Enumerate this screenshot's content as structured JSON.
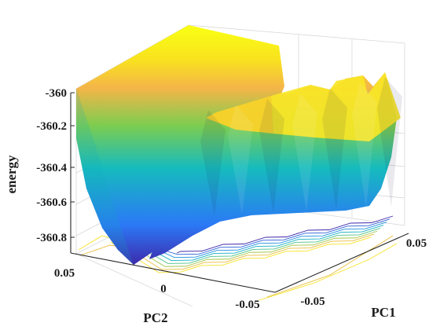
{
  "chart_data": {
    "type": "surface3d",
    "title": "",
    "xlabel": "PC1",
    "ylabel": "PC2",
    "zlabel": "energy",
    "xlim": [
      -0.07,
      0.07
    ],
    "ylim": [
      -0.07,
      0.07
    ],
    "zlim": [
      -360.9,
      -360.0
    ],
    "x_ticks": [
      "-0.05",
      "0.05"
    ],
    "y_ticks": [
      "0.05",
      "0",
      "-0.05"
    ],
    "z_ticks": [
      "-360",
      "-360.2",
      "-360.4",
      "-360.6",
      "-360.8"
    ],
    "z_tick_values": [
      -360.0,
      -360.2,
      -360.4,
      -360.6,
      -360.8
    ],
    "colormap": [
      "#3e26a8",
      "#2b79f6",
      "#16bbbe",
      "#6ccd5a",
      "#f3c33c",
      "#f9fb15"
    ],
    "has_contour_projection": true,
    "grid": true,
    "surface_shape": "double-well valley along PC2 = 0 with ripples along PC1; minimum ≈ -360.85 near PC2 = 0.03, rim at ≈ -359.95"
  }
}
